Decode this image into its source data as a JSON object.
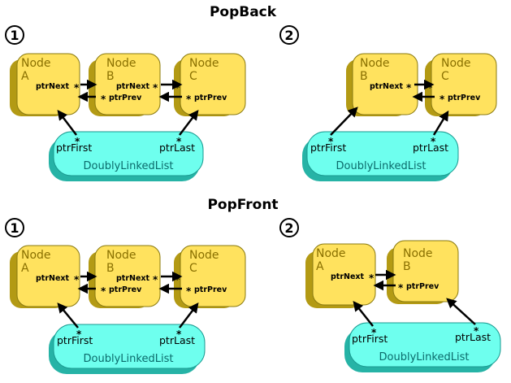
{
  "titles": {
    "popback": "PopBack",
    "popfront": "PopFront"
  },
  "steps": {
    "one": "1",
    "two": "2"
  },
  "labels": {
    "node": "Node",
    "a": "A",
    "b": "B",
    "c": "C",
    "ptrNext": "ptrNext",
    "ptrPrev": "ptrPrev",
    "ptrFirst": "ptrFirst",
    "ptrLast": "ptrLast",
    "list": "DoublyLinkedList",
    "star": "*"
  },
  "colors": {
    "node_fill": "#ffe25e",
    "node_shadow": "#b39a14",
    "node_text": "#8a7000",
    "list_fill": "#6effee",
    "list_shadow": "#26b3a6",
    "list_text": "#0a6a6a",
    "arrow": "#000000"
  }
}
